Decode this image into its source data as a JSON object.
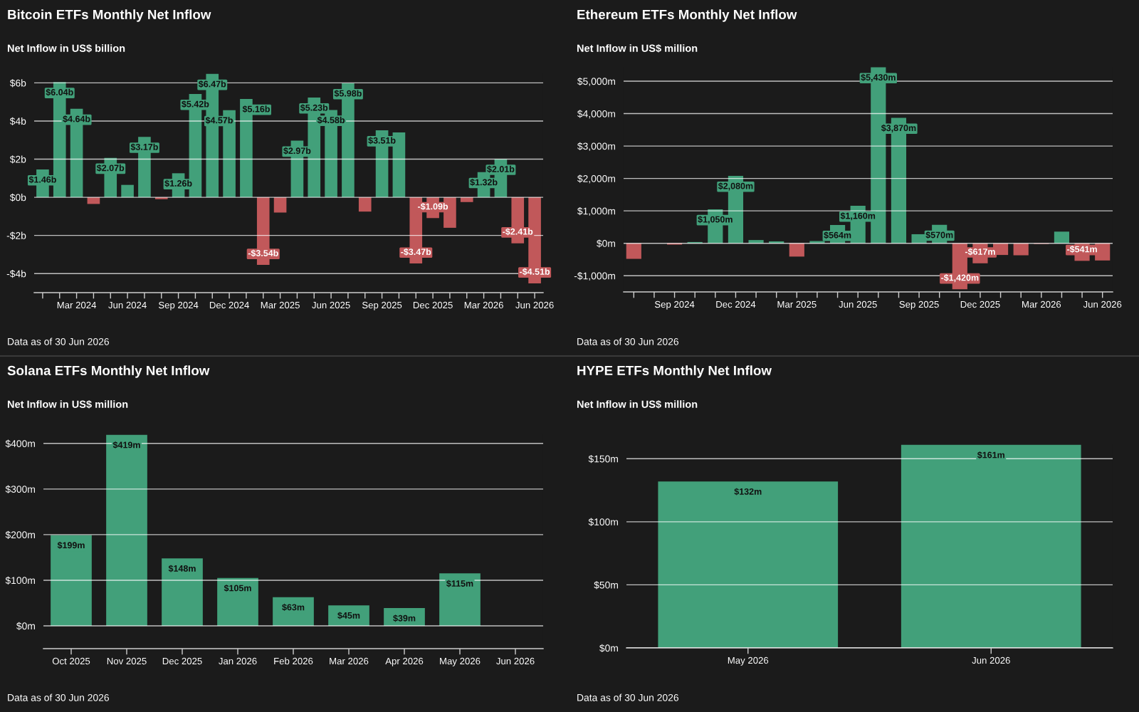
{
  "chart_data": [
    {
      "type": "bar",
      "title": "Bitcoin ETFs Monthly Net Inflow",
      "subtitle": "Net Inflow in US$ billion",
      "categories": [
        null,
        null,
        "Mar 2024",
        null,
        null,
        "Jun 2024",
        null,
        null,
        "Sep 2024",
        null,
        null,
        "Dec 2024",
        null,
        null,
        "Mar 2025",
        null,
        null,
        "Jun 2025",
        null,
        null,
        "Sep 2025",
        null,
        null,
        "Dec 2025",
        null,
        null,
        "Mar 2026",
        null,
        null,
        "Jun 2026"
      ],
      "values": [
        1.46,
        6.04,
        4.64,
        -0.35,
        2.07,
        0.65,
        3.17,
        -0.1,
        1.26,
        5.42,
        6.47,
        4.57,
        5.16,
        -3.54,
        -0.8,
        2.97,
        5.23,
        4.58,
        5.98,
        -0.75,
        3.51,
        3.4,
        -3.47,
        -1.09,
        -1.6,
        -0.25,
        1.32,
        2.01,
        -2.41,
        -4.51
      ],
      "colors": [
        "#42a07a",
        "#42a07a",
        "#42a07a",
        "#c1585a",
        "#42a07a",
        "#42a07a",
        "#42a07a",
        "#c1585a",
        "#42a07a",
        "#42a07a",
        "#42a07a",
        "#42a07a",
        "#42a07a",
        "#c1585a",
        "#c1585a",
        "#42a07a",
        "#42a07a",
        "#42a07a",
        "#42a07a",
        "#c1585a",
        "#42a07a",
        "#42a07a",
        "#c1585a",
        "#c1585a",
        "#c1585a",
        "#c1585a",
        "#42a07a",
        "#42a07a",
        "#c1585a",
        "#c1585a"
      ],
      "value_labels": [
        "$1.46b",
        "$6.04b",
        "$4.64b",
        null,
        "$2.07b",
        null,
        "$3.17b",
        null,
        "$1.26b",
        "$5.42b",
        "$6.47b",
        "$4.57b",
        "$5.16b",
        "-$3.54b",
        null,
        "$2.97b",
        "$5.23b",
        "$4.58b",
        "$5.98b",
        null,
        "$3.51b",
        null,
        "-$3.47b",
        "-$1.09b",
        null,
        null,
        "$1.32b",
        "$2.01b",
        "-$2.41b",
        "-$4.51b"
      ],
      "ylim": [
        -5,
        6.5
      ],
      "yticks": [
        {
          "value": -4,
          "label": "-$4b"
        },
        {
          "value": -2,
          "label": "-$2b"
        },
        {
          "value": 0,
          "label": "$0b"
        },
        {
          "value": 2,
          "label": "$2b"
        },
        {
          "value": 4,
          "label": "$4b"
        },
        {
          "value": 6,
          "label": "$6b"
        }
      ],
      "grid": "y",
      "annotations": [
        "Data as of 30 Jun 2026"
      ]
    },
    {
      "type": "bar",
      "title": "Ethereum ETFs Monthly Net Inflow",
      "subtitle": "Net Inflow in US$ million",
      "categories": [
        null,
        null,
        "Sep 2024",
        null,
        null,
        "Dec 2024",
        null,
        null,
        "Mar 2025",
        null,
        null,
        "Jun 2025",
        null,
        null,
        "Sep 2025",
        null,
        null,
        "Dec 2025",
        null,
        null,
        "Mar 2026",
        null,
        null,
        "Jun 2026"
      ],
      "values": [
        -480,
        null,
        -40,
        40,
        1050,
        2080,
        100,
        60,
        -410,
        70,
        564,
        1160,
        5430,
        3870,
        280,
        570,
        -1420,
        -617,
        -360,
        -370,
        -20,
        360,
        -541,
        -530
      ],
      "colors": [
        "#c1585a",
        null,
        "#c1585a",
        "#42a07a",
        "#42a07a",
        "#42a07a",
        "#42a07a",
        "#42a07a",
        "#c1585a",
        "#42a07a",
        "#42a07a",
        "#42a07a",
        "#42a07a",
        "#42a07a",
        "#42a07a",
        "#42a07a",
        "#c1585a",
        "#c1585a",
        "#c1585a",
        "#c1585a",
        "#c1585a",
        "#42a07a",
        "#c1585a",
        "#c1585a"
      ],
      "value_labels": [
        null,
        null,
        null,
        null,
        "$1,050m",
        "$2,080m",
        null,
        null,
        null,
        null,
        "$564m",
        "$1,160m",
        "$5,430m",
        "$3,870m",
        null,
        "$570m",
        "-$1,420m",
        "-$617m",
        null,
        null,
        null,
        null,
        "-$541m",
        null
      ],
      "ylim": [
        -1500,
        5440
      ],
      "yticks": [
        {
          "value": -1000,
          "label": "-$1,000m"
        },
        {
          "value": 0,
          "label": "$0m"
        },
        {
          "value": 1000,
          "label": "$1,000m"
        },
        {
          "value": 2000,
          "label": "$2,000m"
        },
        {
          "value": 3000,
          "label": "$3,000m"
        },
        {
          "value": 4000,
          "label": "$4,000m"
        },
        {
          "value": 5000,
          "label": "$5,000m"
        }
      ],
      "grid": "y",
      "annotations": [
        "Data as of 30 Jun 2026"
      ]
    },
    {
      "type": "bar",
      "title": "Solana ETFs Monthly Net Inflow",
      "subtitle": "Net Inflow in US$ million",
      "categories": [
        "Oct 2025",
        "Nov 2025",
        "Dec 2025",
        "Jan 2026",
        "Feb 2026",
        "Mar 2026",
        "Apr 2026",
        "May 2026",
        "Jun 2026"
      ],
      "values": [
        199,
        419,
        148,
        105,
        63,
        45,
        39,
        115,
        null
      ],
      "colors": [
        "#42a07a",
        "#42a07a",
        "#42a07a",
        "#42a07a",
        "#42a07a",
        "#42a07a",
        "#42a07a",
        "#42a07a",
        null
      ],
      "value_labels": [
        "$199m",
        "$419m",
        "$148m",
        "$105m",
        "$63m",
        "$45m",
        "$39m",
        "$115m",
        null
      ],
      "ylim": [
        -50,
        420
      ],
      "yticks": [
        {
          "value": 0,
          "label": "$0m"
        },
        {
          "value": 100,
          "label": "$100m"
        },
        {
          "value": 200,
          "label": "$200m"
        },
        {
          "value": 300,
          "label": "$300m"
        },
        {
          "value": 400,
          "label": "$400m"
        }
      ],
      "grid": "y",
      "annotations": [
        "Data as of 30 Jun 2026"
      ]
    },
    {
      "type": "bar",
      "title": "HYPE ETFs Monthly Net Inflow",
      "subtitle": "Net Inflow in US$ million",
      "categories": [
        "May 2026",
        "Jun 2026"
      ],
      "values": [
        132,
        161
      ],
      "colors": [
        "#42a07a",
        "#42a07a"
      ],
      "value_labels": [
        "$132m",
        "$161m"
      ],
      "ylim": [
        0,
        162
      ],
      "yticks": [
        {
          "value": 0,
          "label": "$0m"
        },
        {
          "value": 50,
          "label": "$50m"
        },
        {
          "value": 100,
          "label": "$100m"
        },
        {
          "value": 150,
          "label": "$150m"
        }
      ],
      "grid": "y",
      "annotations": [
        "Data as of 30 Jun 2026"
      ]
    }
  ]
}
